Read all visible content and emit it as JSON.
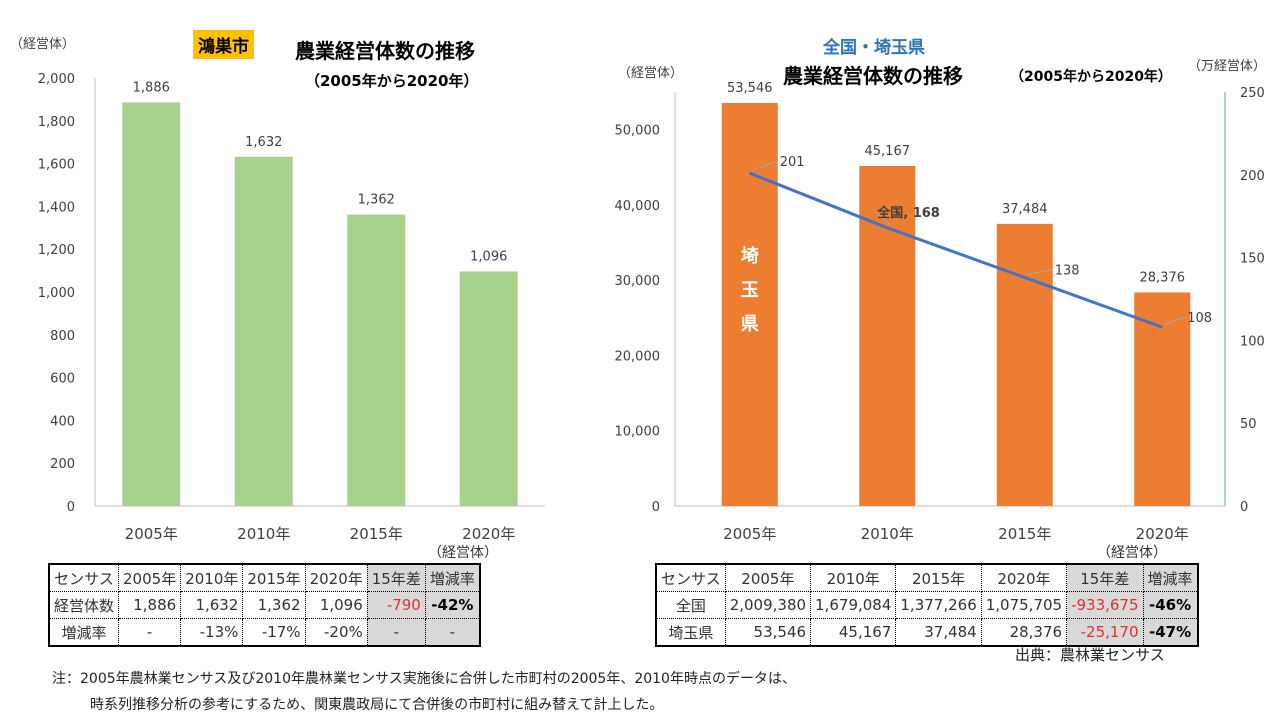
{
  "left": {
    "badge": "鴻巣市",
    "title": "農業経営体数の推移",
    "subtitle": "（2005年から2020年）",
    "unit": "（経営体）",
    "chart_data": {
      "type": "bar",
      "categories": [
        "2005年",
        "2010年",
        "2015年",
        "2020年"
      ],
      "values": [
        1886,
        1632,
        1362,
        1096
      ],
      "value_labels": [
        "1,886",
        "1,632",
        "1,362",
        "1,096"
      ],
      "ylim": [
        0,
        2000
      ],
      "yticks": [
        "0",
        "200",
        "400",
        "600",
        "800",
        "1,000",
        "1,200",
        "1,400",
        "1,600",
        "1,800",
        "2,000"
      ],
      "ylabel": "（経営体）",
      "color": "#a9d18e",
      "grid": false
    },
    "table": {
      "unit": "（経営体）",
      "header": [
        "センサス",
        "2005年",
        "2010年",
        "2015年",
        "2020年",
        "15年差",
        "増減率"
      ],
      "rows": [
        [
          "経営体数",
          "1,886",
          "1,632",
          "1,362",
          "1,096",
          "-790",
          "-42%"
        ],
        [
          "増減率",
          "-",
          "-13%",
          "-17%",
          "-20%",
          "-",
          "-"
        ]
      ]
    }
  },
  "right": {
    "title1": "全国・埼玉県",
    "title2": "農業経営体数の推移",
    "subtitle": "（2005年から2020年）",
    "chart_data": {
      "type": "bar+line",
      "categories": [
        "2005年",
        "2010年",
        "2015年",
        "2020年"
      ],
      "bar_series": {
        "name": "埼玉県",
        "values": [
          53546,
          45167,
          37484,
          28376
        ],
        "value_labels": [
          "53,546",
          "45,167",
          "37,484",
          "28,376"
        ],
        "color": "#ed7d31"
      },
      "line_series": {
        "name": "全国",
        "values": [
          201,
          168,
          138,
          108
        ],
        "value_labels": [
          "201",
          "全国, 168",
          "138",
          "108"
        ],
        "color": "#4472c4"
      },
      "ylim_left": [
        0,
        55000
      ],
      "yticks_left": [
        "0",
        "10,000",
        "20,000",
        "30,000",
        "40,000",
        "50,000"
      ],
      "ylabel_left": "（経営体）",
      "ylim_right": [
        0,
        250
      ],
      "yticks_right": [
        "0",
        "50",
        "100",
        "150",
        "200",
        "250"
      ],
      "ylabel_right": "（万経営体）",
      "bar_label": [
        "埼",
        "玉",
        "県"
      ]
    },
    "table": {
      "unit": "（経営体）",
      "header": [
        "センサス",
        "2005年",
        "2010年",
        "2015年",
        "2020年",
        "15年差",
        "増減率"
      ],
      "rows": [
        [
          "全国",
          "2,009,380",
          "1,679,084",
          "1,377,266",
          "1,075,705",
          "-933,675",
          "-46%"
        ],
        [
          "埼玉県",
          "53,546",
          "45,167",
          "37,484",
          "28,376",
          "-25,170",
          "-47%"
        ]
      ]
    },
    "source": "出典：農林業センサス"
  },
  "note": [
    "注：2005年農林業センサス及び2010年農林業センサス実施後に合併した市町村の2005年、2010年時点のデータは、",
    "時系列推移分析の参考にするため、関東農政局にて合併後の市町村に組み替えて計上した。"
  ]
}
